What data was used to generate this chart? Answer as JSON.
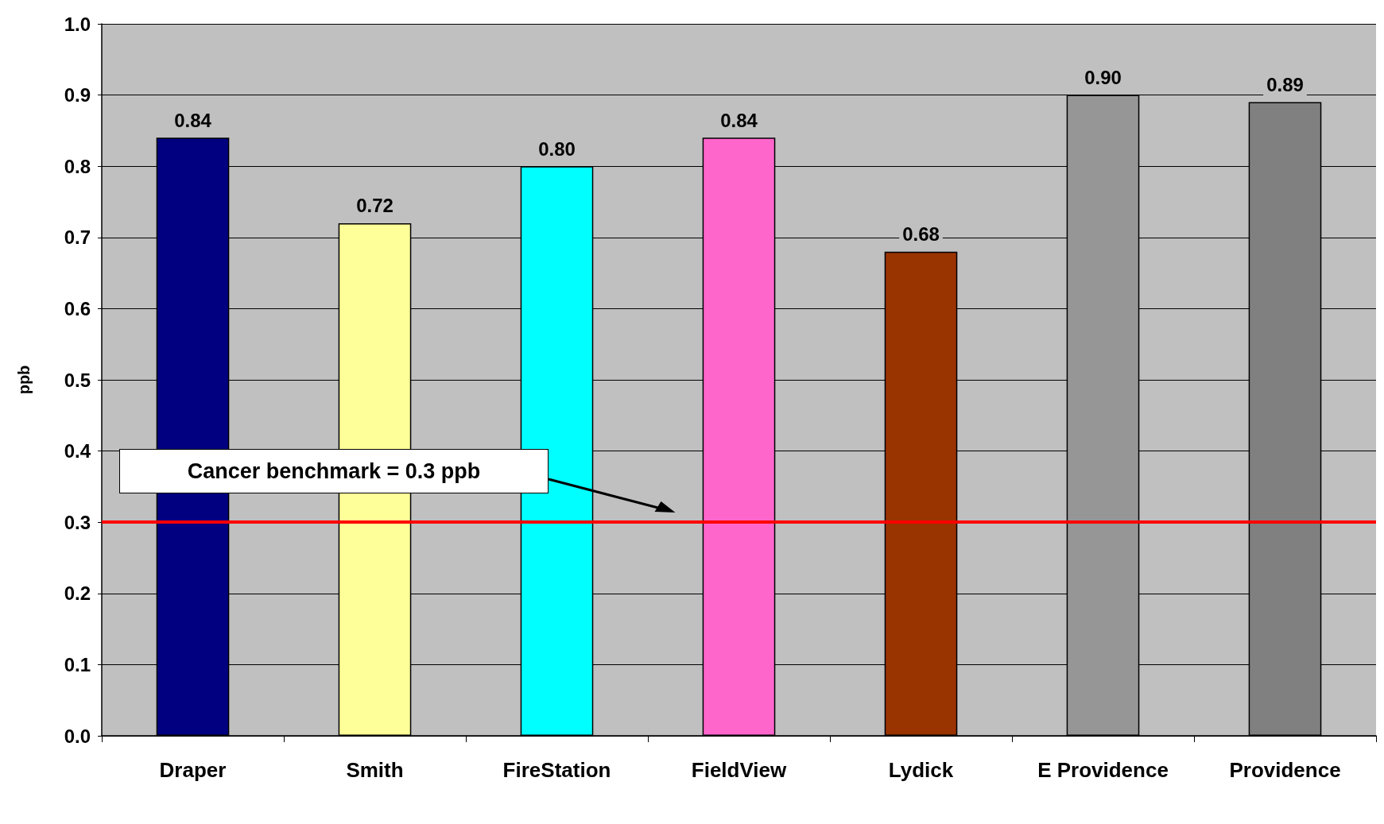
{
  "chart_data": {
    "type": "bar",
    "ylabel": "ppb",
    "categories": [
      "Draper",
      "Smith",
      "FireStation",
      "FieldView",
      "Lydick",
      "E Providence",
      "Providence"
    ],
    "values": [
      0.84,
      0.72,
      0.8,
      0.84,
      0.68,
      0.9,
      0.89
    ],
    "value_labels": [
      "0.84",
      "0.72",
      "0.80",
      "0.84",
      "0.68",
      "0.90",
      "0.89"
    ],
    "colors": [
      "#000080",
      "#ffff99",
      "#00ffff",
      "#ff66cc",
      "#993300",
      "#969696",
      "#808080"
    ],
    "ylim": [
      0,
      1
    ],
    "yticks": [
      {
        "value": 0,
        "label": "0.0"
      },
      0.1,
      0.2,
      0.3,
      0.4,
      0.5,
      0.6,
      0.7,
      0.8,
      0.9,
      {
        "value": 1,
        "label": "1.0"
      }
    ],
    "grid": "y",
    "ref_lines": [
      {
        "axis": "y",
        "value": 0.3,
        "label": "Cancer benchmark = 0.3 ppb",
        "color": "#ff0000"
      }
    ]
  }
}
